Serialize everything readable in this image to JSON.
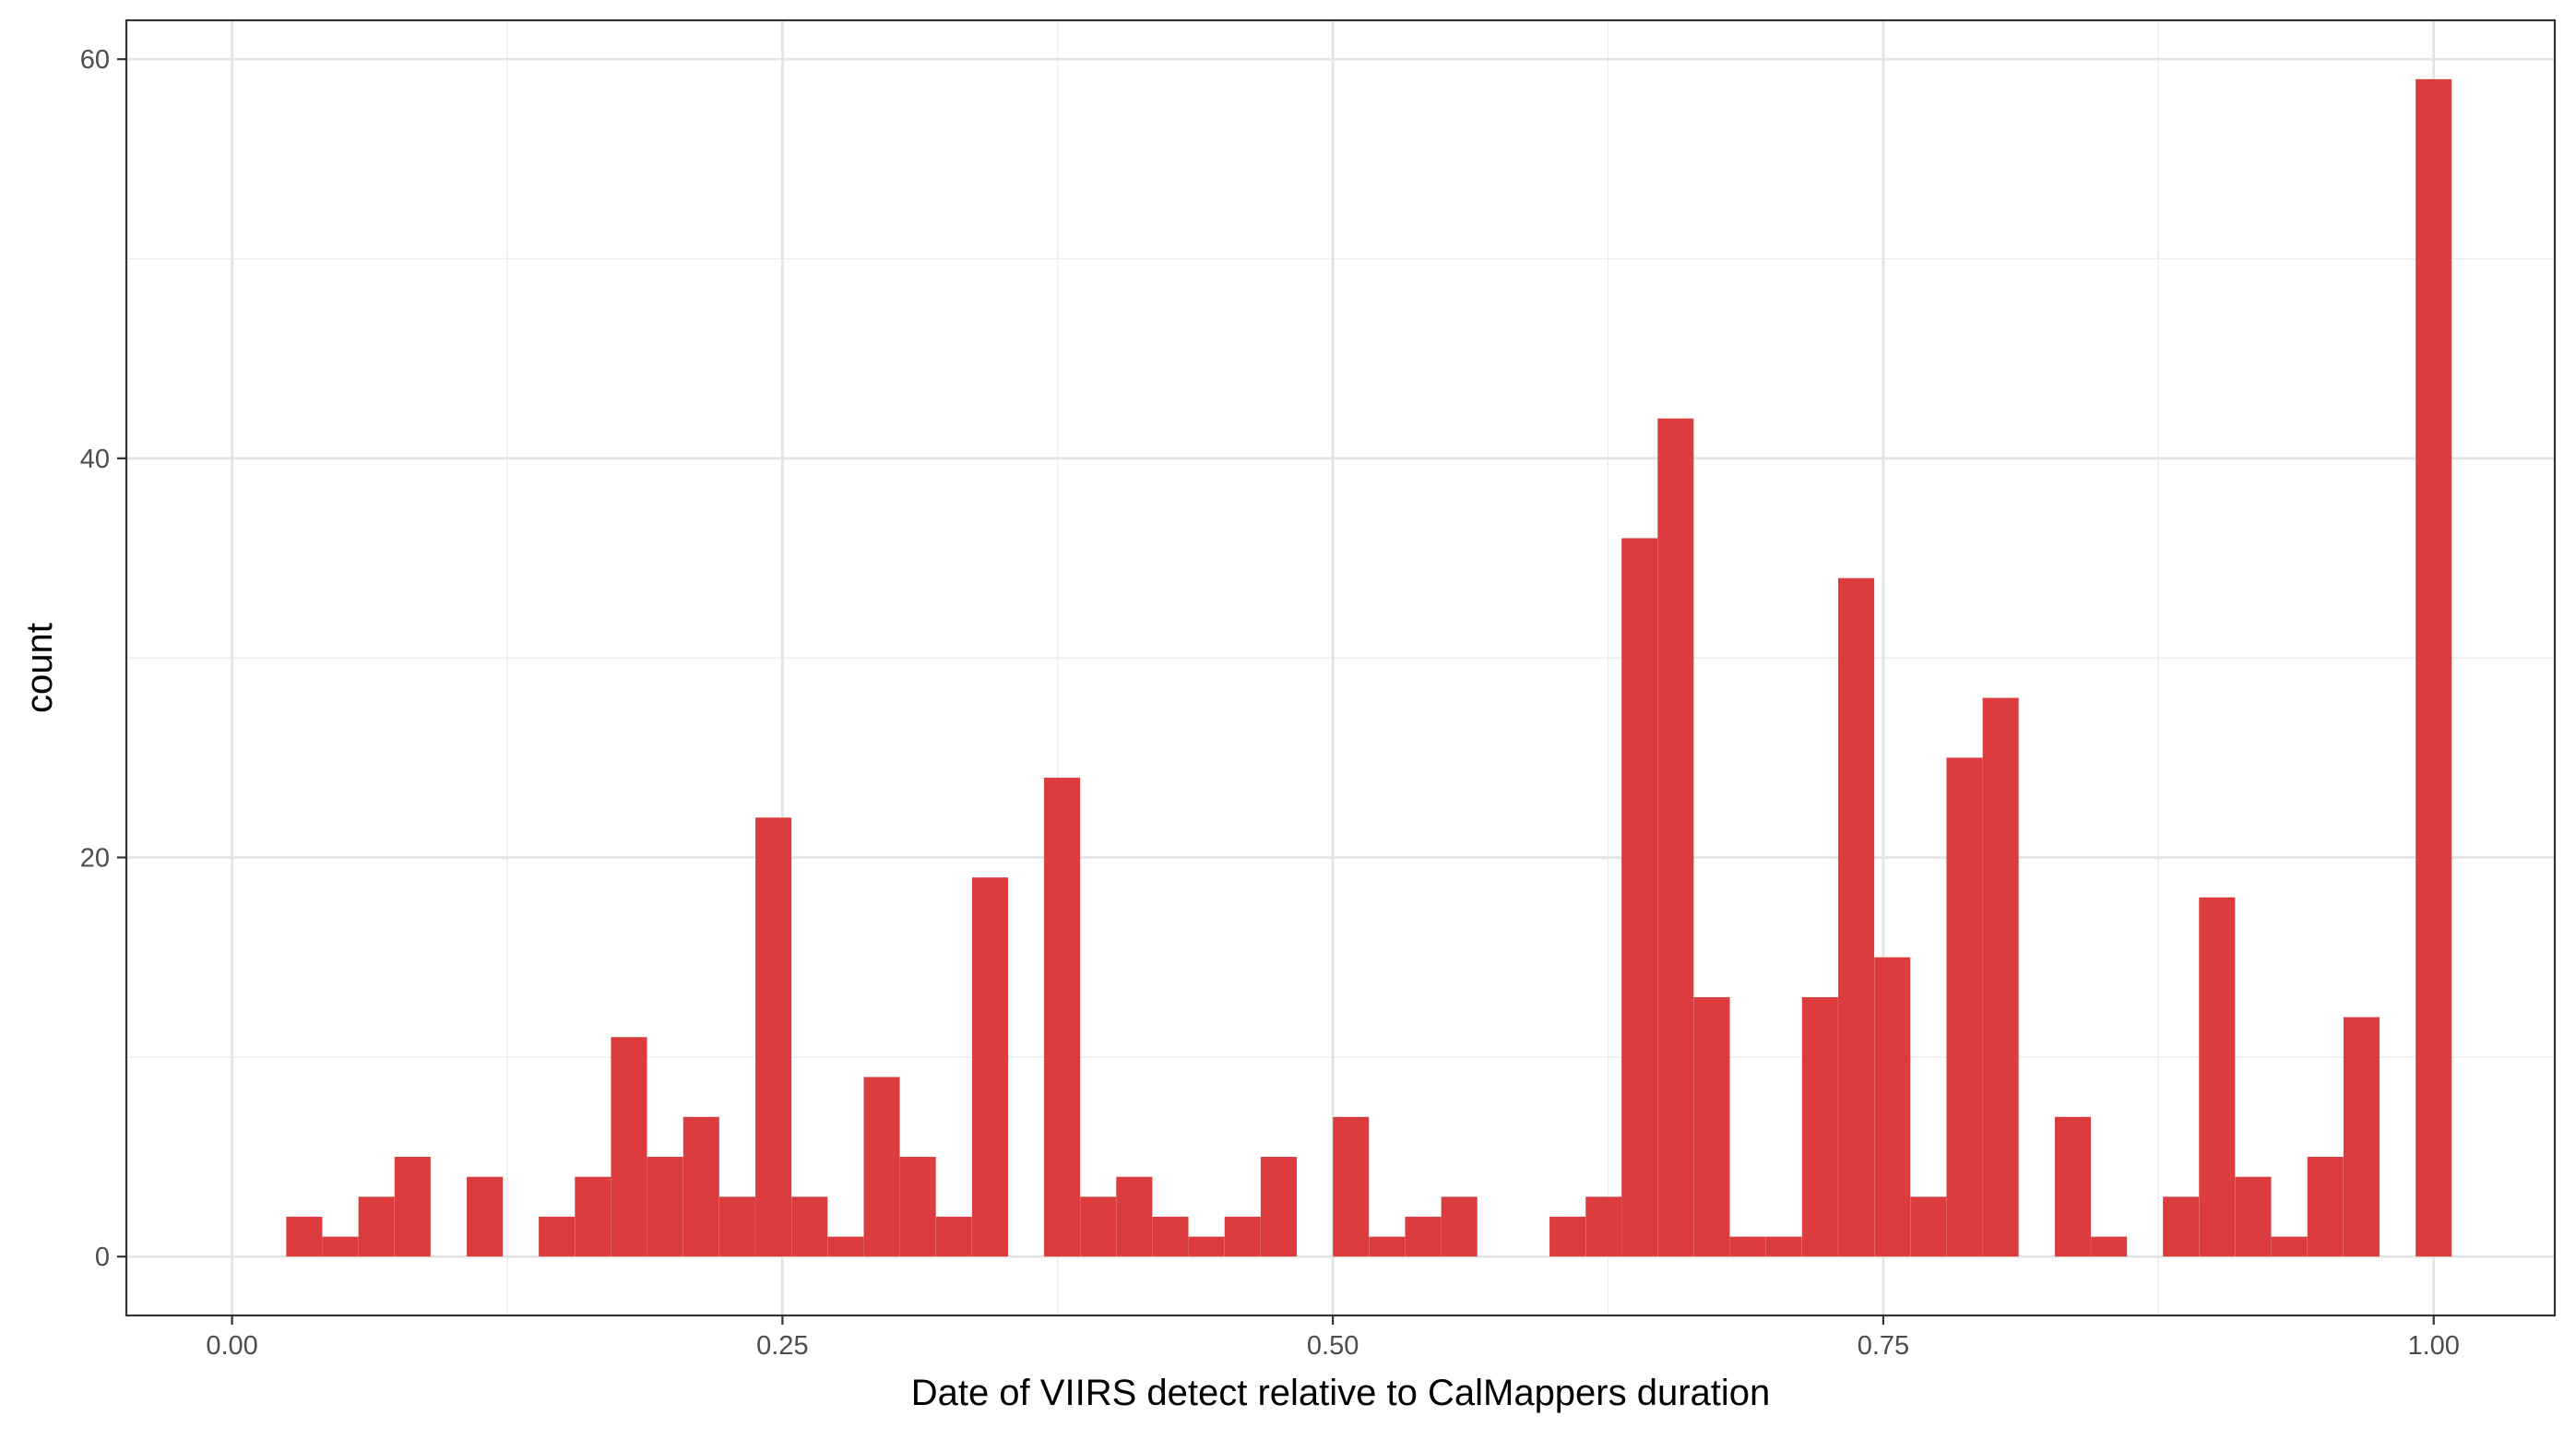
{
  "chart_data": {
    "type": "bar",
    "subtype": "histogram",
    "title": "",
    "xlabel": "Date of VIIRS detect relative to CalMappers duration",
    "ylabel": "count",
    "xlim": [
      -0.048,
      1.055
    ],
    "ylim": [
      -2.95,
      61.95
    ],
    "xticks": [
      0.0,
      0.25,
      0.5,
      0.75,
      1.0
    ],
    "xtick_labels": [
      "0.00",
      "0.25",
      "0.50",
      "0.75",
      "1.00"
    ],
    "yticks": [
      0,
      20,
      40,
      60
    ],
    "ytick_labels": [
      "0",
      "20",
      "40",
      "60"
    ],
    "grid": true,
    "theme": "black-and-white panel",
    "bar_color": "#DC3C3E",
    "legend": "none",
    "bin_width": 0.01639,
    "bin_centers": [
      0.0328,
      0.0492,
      0.0656,
      0.082,
      0.1148,
      0.1475,
      0.1639,
      0.1803,
      0.1967,
      0.2131,
      0.2295,
      0.2459,
      0.2623,
      0.2787,
      0.2951,
      0.3115,
      0.3279,
      0.3443,
      0.377,
      0.3934,
      0.4098,
      0.4262,
      0.4426,
      0.459,
      0.4754,
      0.5082,
      0.5246,
      0.541,
      0.5574,
      0.6066,
      0.623,
      0.6393,
      0.6557,
      0.6721,
      0.6885,
      0.7049,
      0.7213,
      0.7377,
      0.7541,
      0.7705,
      0.7869,
      0.8033,
      0.8361,
      0.8525,
      0.8852,
      0.9016,
      0.918,
      0.9344,
      0.9508,
      0.9672,
      1.0
    ],
    "counts": [
      2,
      1,
      3,
      5,
      4,
      2,
      4,
      11,
      5,
      7,
      3,
      22,
      3,
      1,
      9,
      5,
      2,
      19,
      24,
      3,
      4,
      2,
      1,
      2,
      5,
      7,
      1,
      2,
      3,
      2,
      3,
      36,
      42,
      13,
      1,
      1,
      13,
      34,
      15,
      3,
      25,
      28,
      7,
      1,
      3,
      18,
      4,
      1,
      5,
      12,
      59
    ]
  }
}
